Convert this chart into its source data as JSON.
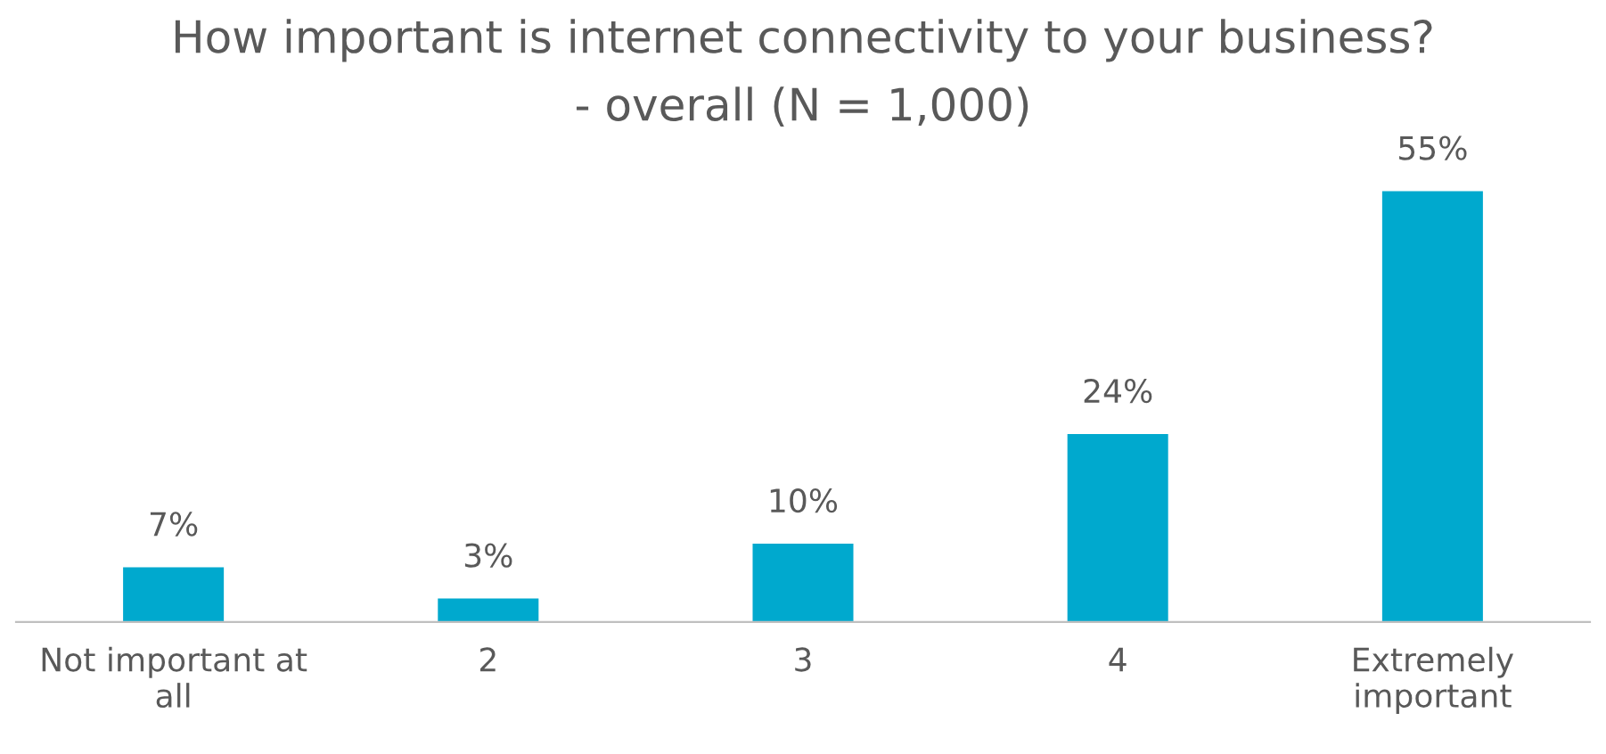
{
  "chart_data": {
    "type": "bar",
    "title": "How important is internet connectivity to your business?",
    "subtitle": "- overall (N = 1,000)",
    "categories": [
      "Not important at\nall",
      "2",
      "3",
      "4",
      "Extremely\nimportant"
    ],
    "values": [
      7,
      3,
      10,
      24,
      55
    ],
    "value_labels": [
      "7%",
      "3%",
      "10%",
      "24%",
      "55%"
    ],
    "color": "#00a9ce",
    "grid": false,
    "legend": false
  }
}
